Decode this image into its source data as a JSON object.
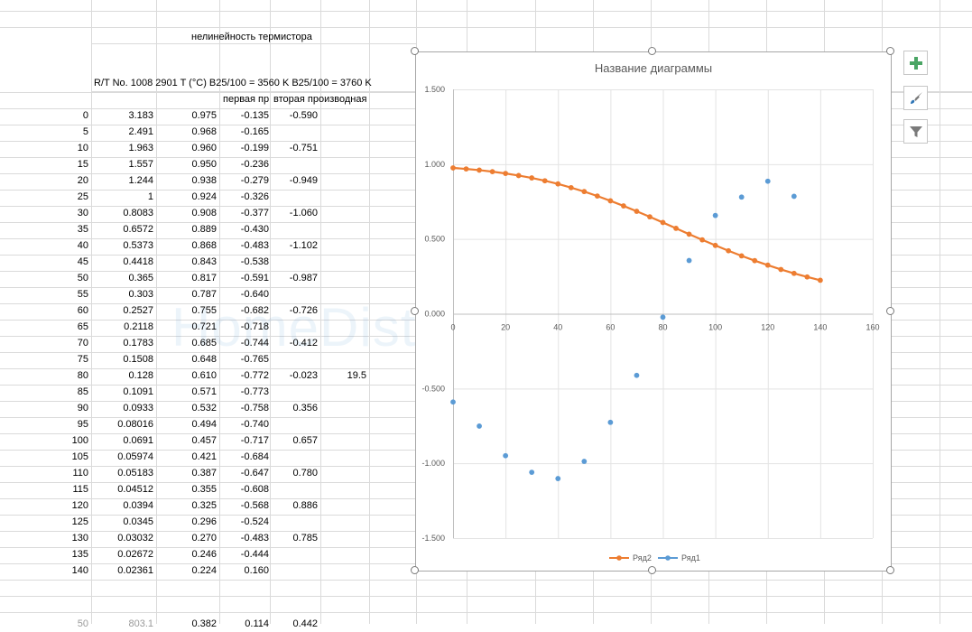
{
  "sheet": {
    "title": "нелинейность термистора",
    "header_row": "R/T No. 1008 2901 T (°C) B25/100 = 3560 K B25/100 = 3760 K",
    "col_d_header": "первая пр",
    "col_e_header": "вторая производная",
    "rows": [
      {
        "t": "0",
        "r": "3.183",
        "n": "0.975",
        "d1": "-0.135",
        "d2": "-0.590",
        "f": ""
      },
      {
        "t": "5",
        "r": "2.491",
        "n": "0.968",
        "d1": "-0.165",
        "d2": "",
        "f": ""
      },
      {
        "t": "10",
        "r": "1.963",
        "n": "0.960",
        "d1": "-0.199",
        "d2": "-0.751",
        "f": ""
      },
      {
        "t": "15",
        "r": "1.557",
        "n": "0.950",
        "d1": "-0.236",
        "d2": "",
        "f": ""
      },
      {
        "t": "20",
        "r": "1.244",
        "n": "0.938",
        "d1": "-0.279",
        "d2": "-0.949",
        "f": ""
      },
      {
        "t": "25",
        "r": "1",
        "n": "0.924",
        "d1": "-0.326",
        "d2": "",
        "f": ""
      },
      {
        "t": "30",
        "r": "0.8083",
        "n": "0.908",
        "d1": "-0.377",
        "d2": "-1.060",
        "f": ""
      },
      {
        "t": "35",
        "r": "0.6572",
        "n": "0.889",
        "d1": "-0.430",
        "d2": "",
        "f": ""
      },
      {
        "t": "40",
        "r": "0.5373",
        "n": "0.868",
        "d1": "-0.483",
        "d2": "-1.102",
        "f": ""
      },
      {
        "t": "45",
        "r": "0.4418",
        "n": "0.843",
        "d1": "-0.538",
        "d2": "",
        "f": ""
      },
      {
        "t": "50",
        "r": "0.365",
        "n": "0.817",
        "d1": "-0.591",
        "d2": "-0.987",
        "f": ""
      },
      {
        "t": "55",
        "r": "0.303",
        "n": "0.787",
        "d1": "-0.640",
        "d2": "",
        "f": ""
      },
      {
        "t": "60",
        "r": "0.2527",
        "n": "0.755",
        "d1": "-0.682",
        "d2": "-0.726",
        "f": ""
      },
      {
        "t": "65",
        "r": "0.2118",
        "n": "0.721",
        "d1": "-0.718",
        "d2": "",
        "f": ""
      },
      {
        "t": "70",
        "r": "0.1783",
        "n": "0.685",
        "d1": "-0.744",
        "d2": "-0.412",
        "f": ""
      },
      {
        "t": "75",
        "r": "0.1508",
        "n": "0.648",
        "d1": "-0.765",
        "d2": "",
        "f": ""
      },
      {
        "t": "80",
        "r": "0.128",
        "n": "0.610",
        "d1": "-0.772",
        "d2": "-0.023",
        "f": "19.5"
      },
      {
        "t": "85",
        "r": "0.1091",
        "n": "0.571",
        "d1": "-0.773",
        "d2": "",
        "f": ""
      },
      {
        "t": "90",
        "r": "0.0933",
        "n": "0.532",
        "d1": "-0.758",
        "d2": "0.356",
        "f": ""
      },
      {
        "t": "95",
        "r": "0.08016",
        "n": "0.494",
        "d1": "-0.740",
        "d2": "",
        "f": ""
      },
      {
        "t": "100",
        "r": "0.0691",
        "n": "0.457",
        "d1": "-0.717",
        "d2": "0.657",
        "f": ""
      },
      {
        "t": "105",
        "r": "0.05974",
        "n": "0.421",
        "d1": "-0.684",
        "d2": "",
        "f": ""
      },
      {
        "t": "110",
        "r": "0.05183",
        "n": "0.387",
        "d1": "-0.647",
        "d2": "0.780",
        "f": ""
      },
      {
        "t": "115",
        "r": "0.04512",
        "n": "0.355",
        "d1": "-0.608",
        "d2": "",
        "f": ""
      },
      {
        "t": "120",
        "r": "0.0394",
        "n": "0.325",
        "d1": "-0.568",
        "d2": "0.886",
        "f": ""
      },
      {
        "t": "125",
        "r": "0.0345",
        "n": "0.296",
        "d1": "-0.524",
        "d2": "",
        "f": ""
      },
      {
        "t": "130",
        "r": "0.03032",
        "n": "0.270",
        "d1": "-0.483",
        "d2": "0.785",
        "f": ""
      },
      {
        "t": "135",
        "r": "0.02672",
        "n": "0.246",
        "d1": "-0.444",
        "d2": "",
        "f": ""
      },
      {
        "t": "140",
        "r": "0.02361",
        "n": "0.224",
        "d1": "0.160",
        "d2": "",
        "f": ""
      }
    ],
    "bottom_row": {
      "t": "50",
      "r": "803.1",
      "n": "0.382",
      "d1": "0.114",
      "d2": "0.442"
    }
  },
  "watermark": "HomeDistiller.ru",
  "chart_tools": {
    "add_icon": "plus-icon",
    "style_icon": "brush-icon",
    "filter_icon": "funnel-icon"
  },
  "colors": {
    "series_orange": "#ed7d31",
    "series_blue": "#5b9bd5",
    "plus_green": "#4aa564"
  },
  "chart_data": {
    "type": "scatter",
    "title": "Название диаграммы",
    "xlim": [
      0,
      160
    ],
    "ylim": [
      -1.5,
      1.5
    ],
    "x_ticks": [
      "0",
      "20",
      "40",
      "60",
      "80",
      "100",
      "120",
      "140",
      "160"
    ],
    "y_ticks": [
      "1.500",
      "1.000",
      "0.500",
      "0.000",
      "-0.500",
      "-1.000",
      "-1.500"
    ],
    "grid": true,
    "legend_position": "bottom",
    "series": [
      {
        "name": "Ряд2",
        "style": "line-markers",
        "color": "#ed7d31",
        "x": [
          0,
          5,
          10,
          15,
          20,
          25,
          30,
          35,
          40,
          45,
          50,
          55,
          60,
          65,
          70,
          75,
          80,
          85,
          90,
          95,
          100,
          105,
          110,
          115,
          120,
          125,
          130,
          135,
          140
        ],
        "y": [
          0.975,
          0.968,
          0.96,
          0.95,
          0.938,
          0.924,
          0.908,
          0.889,
          0.868,
          0.843,
          0.817,
          0.787,
          0.755,
          0.721,
          0.685,
          0.648,
          0.61,
          0.571,
          0.532,
          0.494,
          0.457,
          0.421,
          0.387,
          0.355,
          0.325,
          0.296,
          0.27,
          0.246,
          0.224
        ]
      },
      {
        "name": "Ряд1",
        "style": "markers",
        "color": "#5b9bd5",
        "x": [
          0,
          10,
          20,
          30,
          40,
          50,
          60,
          70,
          80,
          90,
          100,
          110,
          120,
          130
        ],
        "y": [
          -0.59,
          -0.751,
          -0.949,
          -1.06,
          -1.102,
          -0.987,
          -0.726,
          -0.412,
          -0.023,
          0.356,
          0.657,
          0.78,
          0.886,
          0.785
        ]
      }
    ]
  }
}
